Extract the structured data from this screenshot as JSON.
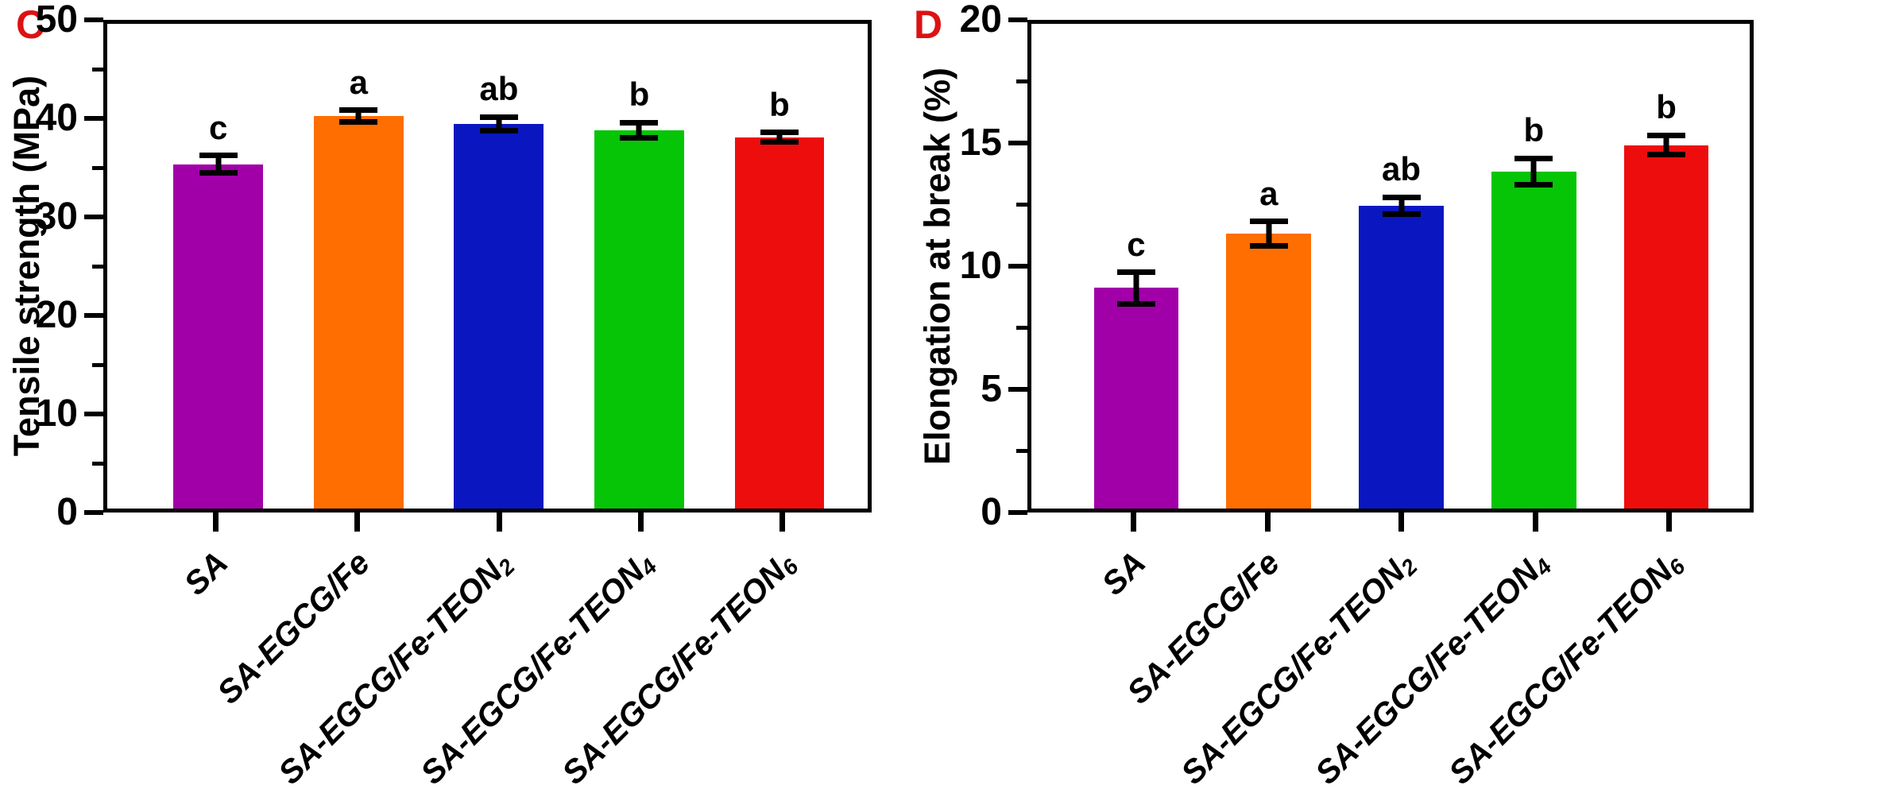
{
  "figure_type": "two-panel bar chart figure",
  "chart_data": [
    {
      "type": "bar",
      "panel_letter": "C",
      "panel_letter_color": "#dd1212",
      "title": "",
      "xlabel": "",
      "ylabel": "Tensile strength (MPa)",
      "ylim": [
        0,
        50
      ],
      "yticks": [
        0,
        10,
        20,
        30,
        40,
        50
      ],
      "minor_ticks": [
        5,
        15,
        25,
        35,
        45
      ],
      "grid": "off",
      "legend": "none",
      "categories": [
        "SA",
        "SA-EGCG/Fe",
        "SA-EGCG/Fe-TEON2",
        "SA-EGCG/Fe-TEON4",
        "SA-EGCG/Fe-TEON6"
      ],
      "x_tick_labels": [
        {
          "text": "SA",
          "sub": ""
        },
        {
          "text": "SA-EGCG/Fe",
          "sub": ""
        },
        {
          "text": "SA-EGCG/Fe-TEON",
          "sub": "2"
        },
        {
          "text": "SA-EGCG/Fe-TEON",
          "sub": "4"
        },
        {
          "text": "SA-EGCG/Fe-TEON",
          "sub": "6"
        }
      ],
      "values": [
        35.5,
        40.5,
        39.7,
        39.0,
        38.3
      ],
      "errors": [
        0.9,
        0.6,
        0.7,
        0.8,
        0.5
      ],
      "sig_letters": [
        "c",
        "a",
        "ab",
        "b",
        "b"
      ],
      "bar_colors": [
        "#a100a8",
        "#ff6e00",
        "#0a17c1",
        "#06c406",
        "#ee0d0d"
      ]
    },
    {
      "type": "bar",
      "panel_letter": "D",
      "panel_letter_color": "#dd1212",
      "title": "",
      "xlabel": "",
      "ylabel": "Elongation at break (%)",
      "ylim": [
        0,
        20
      ],
      "yticks": [
        0,
        5,
        10,
        15,
        20
      ],
      "minor_ticks": [
        2.5,
        7.5,
        12.5,
        17.5
      ],
      "grid": "off",
      "legend": "none",
      "categories": [
        "SA",
        "SA-EGCG/Fe",
        "SA-EGCG/Fe-TEON2",
        "SA-EGCG/Fe-TEON4",
        "SA-EGCG/Fe-TEON6"
      ],
      "x_tick_labels": [
        {
          "text": "SA",
          "sub": ""
        },
        {
          "text": "SA-EGCG/Fe",
          "sub": ""
        },
        {
          "text": "SA-EGCG/Fe-TEON",
          "sub": "2"
        },
        {
          "text": "SA-EGCG/Fe-TEON",
          "sub": "4"
        },
        {
          "text": "SA-EGCG/Fe-TEON",
          "sub": "6"
        }
      ],
      "values": [
        9.1,
        11.35,
        12.5,
        13.9,
        15.0
      ],
      "errors": [
        0.65,
        0.5,
        0.35,
        0.55,
        0.4
      ],
      "sig_letters": [
        "c",
        "a",
        "ab",
        "b",
        "b"
      ],
      "bar_colors": [
        "#a100a8",
        "#ff6e00",
        "#0a17c1",
        "#06c406",
        "#ee0d0d"
      ]
    }
  ]
}
